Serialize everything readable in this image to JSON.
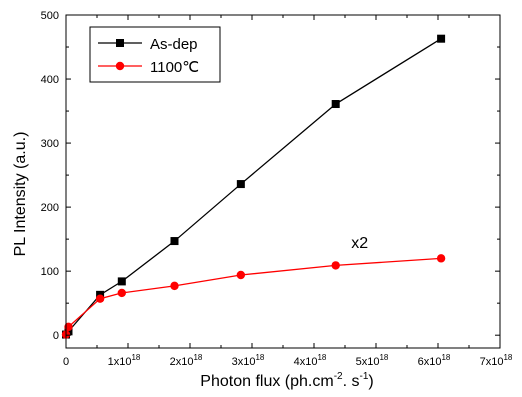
{
  "chart_data": {
    "type": "line",
    "xlabel": "Photon flux (ph.cm",
    "xlabel_sup1": "-2",
    "xlabel_mid": ". s",
    "xlabel_sup2": "-1",
    "xlabel_end": ")",
    "ylabel": "PL Intensity (a.u.)",
    "xlim": [
      0,
      7e+18
    ],
    "ylim": [
      -20,
      500
    ],
    "x_ticks": [
      {
        "value": 0,
        "mantissa": "0",
        "exp": ""
      },
      {
        "value": 1e+18,
        "mantissa": "1x10",
        "exp": "18"
      },
      {
        "value": 2e+18,
        "mantissa": "2x10",
        "exp": "18"
      },
      {
        "value": 3e+18,
        "mantissa": "3x10",
        "exp": "18"
      },
      {
        "value": 4e+18,
        "mantissa": "4x10",
        "exp": "18"
      },
      {
        "value": 5e+18,
        "mantissa": "5x10",
        "exp": "18"
      },
      {
        "value": 6e+18,
        "mantissa": "6x10",
        "exp": "18"
      },
      {
        "value": 7e+18,
        "mantissa": "7x10",
        "exp": "18"
      }
    ],
    "y_ticks": [
      0,
      100,
      200,
      300,
      400,
      500
    ],
    "legend_position": "top-left",
    "annotation": {
      "text": "x2",
      "x": 4.6e+18,
      "y": 136
    },
    "series": [
      {
        "name": "As-dep",
        "color": "#000000",
        "marker": "square",
        "x": [
          0,
          4e+16,
          5.5e+17,
          9e+17,
          1.75e+18,
          2.82e+18,
          4.35e+18,
          6.05e+18
        ],
        "y": [
          1,
          6,
          63,
          84,
          147,
          236,
          361,
          463
        ]
      },
      {
        "name": "1100℃",
        "color": "#ff0000",
        "marker": "circle",
        "x": [
          0,
          4e+16,
          5.5e+17,
          9e+17,
          1.75e+18,
          2.82e+18,
          4.35e+18,
          6.05e+18
        ],
        "y": [
          1,
          13,
          57,
          66,
          77,
          94,
          109,
          120
        ]
      }
    ]
  }
}
